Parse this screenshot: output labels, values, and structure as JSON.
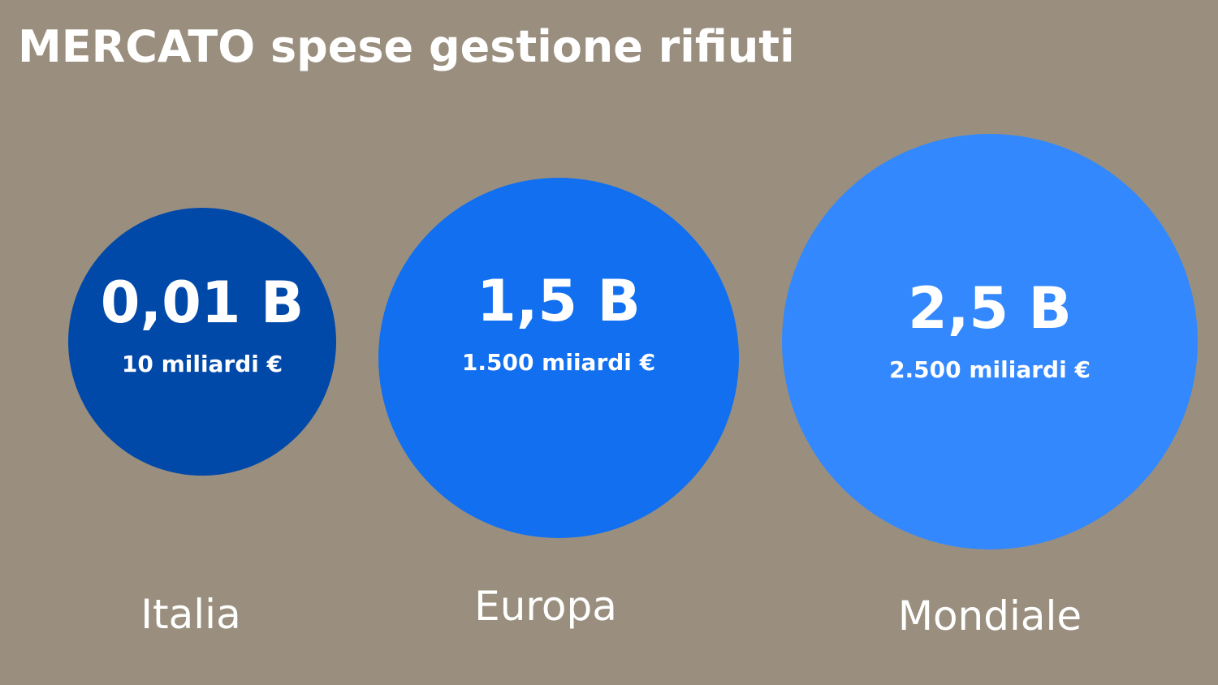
{
  "header": {
    "title": "MERCATO spese gestione rifiuti"
  },
  "items": [
    {
      "value": "0,01 B",
      "detail": "10 miliardi €",
      "label": "Italia"
    },
    {
      "value": "1,5 B",
      "detail": "1.500 miiardi €",
      "label": "Europa"
    },
    {
      "value": "2,5 B",
      "detail": "2.500 miliardi €",
      "label": "Mondiale"
    }
  ]
}
